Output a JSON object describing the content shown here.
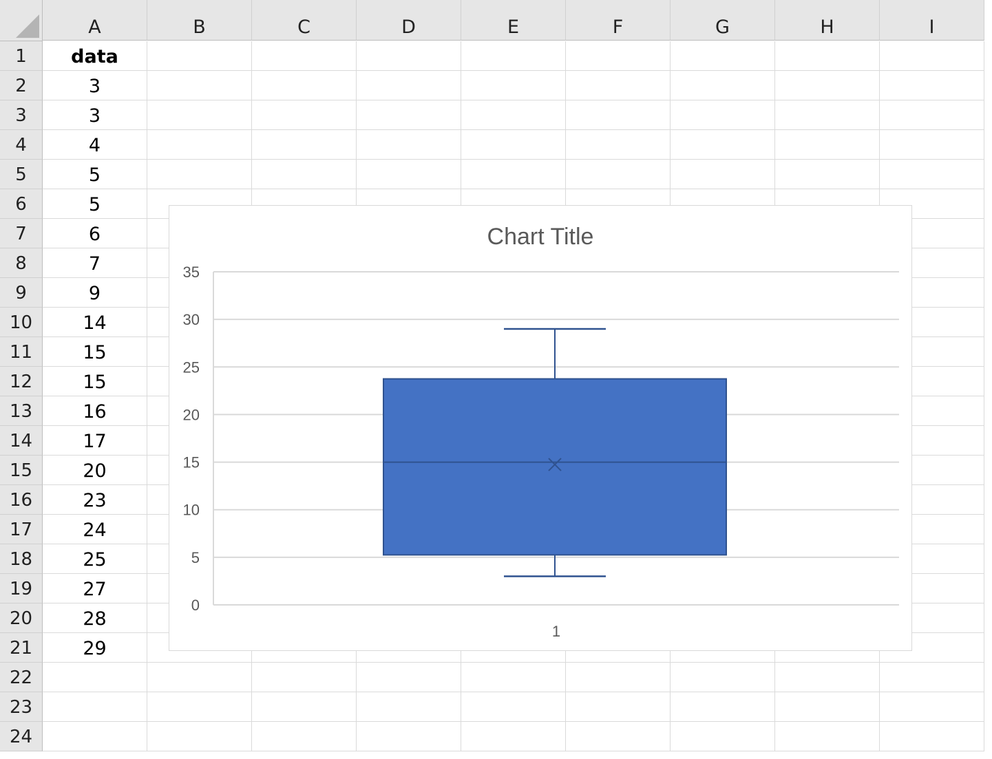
{
  "sheet": {
    "columns": [
      "A",
      "B",
      "C",
      "D",
      "E",
      "F",
      "G",
      "H",
      "I"
    ],
    "rows": [
      "1",
      "2",
      "3",
      "4",
      "5",
      "6",
      "7",
      "8",
      "9",
      "10",
      "11",
      "12",
      "13",
      "14",
      "15",
      "16",
      "17",
      "18",
      "19",
      "20",
      "21",
      "22",
      "23",
      "24"
    ],
    "column_a": [
      "data",
      "3",
      "3",
      "4",
      "5",
      "5",
      "6",
      "7",
      "9",
      "14",
      "15",
      "15",
      "16",
      "17",
      "20",
      "23",
      "24",
      "25",
      "27",
      "28",
      "29"
    ]
  },
  "chart_data": {
    "type": "box",
    "title": "Chart Title",
    "categories": [
      "1"
    ],
    "yticks": [
      "0",
      "5",
      "10",
      "15",
      "20",
      "25",
      "30",
      "35"
    ],
    "ylim": [
      0,
      35
    ],
    "grid": true,
    "series": [
      {
        "values": [
          3,
          3,
          4,
          5,
          5,
          6,
          7,
          9,
          14,
          15,
          15,
          16,
          17,
          20,
          23,
          24,
          25,
          27,
          28,
          29
        ],
        "min": 3,
        "q1": 5.25,
        "median": 15,
        "mean": 14.75,
        "q3": 23.75,
        "max": 29
      }
    ],
    "colors": {
      "box": "#4472c4",
      "box_border": "#2f528f",
      "whisker": "#2f528f",
      "grid": "#d9d9d9",
      "text": "#595959"
    }
  }
}
